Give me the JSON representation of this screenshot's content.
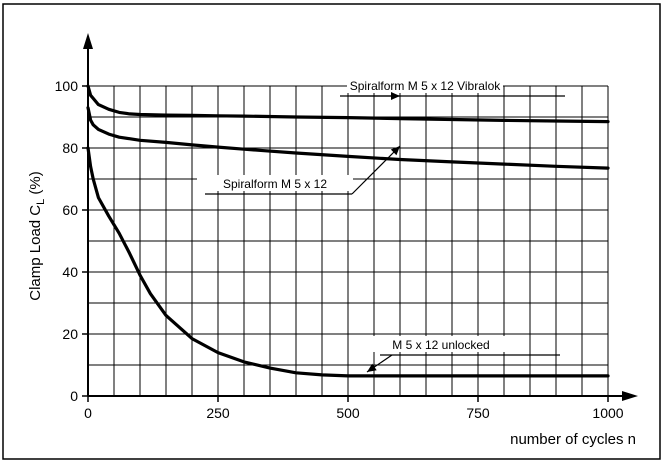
{
  "chart_data": {
    "type": "line",
    "xlabel": "number of cycles n",
    "ylabel": "Clamp Load C",
    "ylabel_subscript": "L",
    "ylabel_suffix": " (%)",
    "xlim": [
      0,
      1000
    ],
    "ylim": [
      0,
      110
    ],
    "x_ticks": [
      0,
      250,
      500,
      750,
      1000
    ],
    "y_ticks": [
      0,
      20,
      40,
      60,
      80,
      100
    ],
    "x_grid_step": 50,
    "y_grid_step": 10,
    "grid": true,
    "series": [
      {
        "name": "Spiralform M 5 x 12 Vibralok",
        "x": [
          0,
          5,
          10,
          20,
          40,
          60,
          80,
          100,
          150,
          200,
          250,
          300,
          400,
          500,
          600,
          700,
          800,
          900,
          1000
        ],
        "y": [
          100,
          97,
          96,
          94,
          92.5,
          91.5,
          91,
          90.8,
          90.6,
          90.5,
          90.4,
          90.3,
          90,
          89.8,
          89.5,
          89.2,
          88.9,
          88.7,
          88.5
        ]
      },
      {
        "name": "Spiralform M 5 x 12",
        "x": [
          0,
          5,
          10,
          20,
          40,
          60,
          80,
          100,
          150,
          200,
          250,
          300,
          400,
          500,
          600,
          700,
          800,
          900,
          1000
        ],
        "y": [
          93,
          89,
          87.5,
          86,
          84.5,
          83.5,
          83,
          82.5,
          81.8,
          81,
          80.3,
          79.6,
          78.4,
          77.3,
          76.3,
          75.5,
          74.8,
          74.1,
          73.5
        ]
      },
      {
        "name": "M 5 x 12 unlocked",
        "x": [
          0,
          5,
          10,
          20,
          40,
          60,
          80,
          100,
          120,
          150,
          200,
          250,
          300,
          350,
          400,
          450,
          500,
          550,
          600,
          700,
          800,
          900,
          1000
        ],
        "y": [
          80,
          74,
          70,
          64,
          58,
          52.5,
          46,
          39,
          33,
          26,
          18.5,
          14,
          11,
          9,
          7.5,
          6.8,
          6.5,
          6.5,
          6.5,
          6.5,
          6.5,
          6.5,
          6.5
        ]
      }
    ],
    "annotations": [
      {
        "text": "Spiralform M 5 x 12 Vibralok",
        "series": 0
      },
      {
        "text": "Spiralform M 5 x 12",
        "series": 1
      },
      {
        "text": "M 5 x 12 unlocked",
        "series": 2
      }
    ]
  }
}
